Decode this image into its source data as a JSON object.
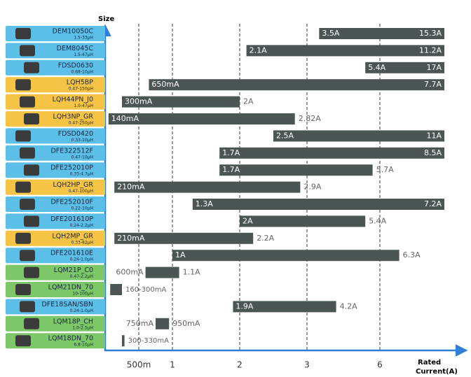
{
  "chart_data": {
    "type": "range-bar",
    "y_label": "Size",
    "x_label": "Rated Current(A)",
    "xlim": [
      0.1,
      7
    ],
    "xticks": [
      {
        "value": 0.5,
        "label": "500m"
      },
      1,
      2,
      3,
      6
    ],
    "grid": true,
    "bar_color": "#4b5654",
    "rows": [
      {
        "name": "DEM10050C",
        "inductance": "1.5-33µH",
        "color": "#5bbfe8",
        "values": [
          3.5,
          15.3
        ],
        "value_labels": [
          "3.5A",
          "15.3A"
        ]
      },
      {
        "name": "DEM8045C",
        "inductance": "1.5-47µH",
        "color": "#5bbfe8",
        "values": [
          2.1,
          11.2
        ],
        "value_labels": [
          "2.1A",
          "11.2A"
        ]
      },
      {
        "name": "FDSD0630",
        "inductance": "0.68-10µH",
        "color": "#5bbfe8",
        "values": [
          5.4,
          17
        ],
        "value_labels": [
          "5.4A",
          "17A"
        ]
      },
      {
        "name": "LQH5BP",
        "inductance": "0.47-150µH",
        "color": "#f6c445",
        "values": [
          0.65,
          7.7
        ],
        "value_labels": [
          "650mA",
          "7.7A"
        ]
      },
      {
        "name": "LQH44PN_J0",
        "inductance": "1.0-47µH",
        "color": "#f6c445",
        "values": [
          0.3,
          2
        ],
        "value_labels": [
          "300mA",
          "2A"
        ]
      },
      {
        "name": "LQH3NP_GR",
        "inductance": "0.47-250µH",
        "color": "#f6c445",
        "values": [
          0.14,
          2.82
        ],
        "value_labels": [
          "140mA",
          "2.82A"
        ]
      },
      {
        "name": "FDSD0420",
        "inductance": "0.33-10µH",
        "color": "#5bbfe8",
        "values": [
          2.5,
          11
        ],
        "value_labels": [
          "2.5A",
          "11A"
        ]
      },
      {
        "name": "DFE322512F",
        "inductance": "0.47-10µH",
        "color": "#5bbfe8",
        "values": [
          1.7,
          8.5
        ],
        "value_labels": [
          "1.7A",
          "8.5A"
        ]
      },
      {
        "name": "DFE252010P",
        "inductance": "0.33-4.7µH",
        "color": "#5bbfe8",
        "values": [
          1.7,
          5.7
        ],
        "value_labels": [
          "1.7A",
          "5.7A"
        ]
      },
      {
        "name": "LQH2HP_GR",
        "inductance": "0.47-100µH",
        "color": "#f6c445",
        "values": [
          0.21,
          2.9
        ],
        "value_labels": [
          "210mA",
          "2.9A"
        ]
      },
      {
        "name": "DFE252010F",
        "inductance": "0.22-10µH",
        "color": "#5bbfe8",
        "values": [
          1.3,
          7.2
        ],
        "value_labels": [
          "1.3A",
          "7.2A"
        ]
      },
      {
        "name": "DFE201610P",
        "inductance": "0.24-2.2µH",
        "color": "#5bbfe8",
        "values": [
          2,
          5.4
        ],
        "value_labels": [
          "2A",
          "5.4A"
        ]
      },
      {
        "name": "LQH2MP_GR",
        "inductance": "0.33-82µH",
        "color": "#f6c445",
        "values": [
          0.21,
          2.2
        ],
        "value_labels": [
          "210mA",
          "2.2A"
        ]
      },
      {
        "name": "DFE201610E",
        "inductance": "0.24-1.0µH",
        "color": "#5bbfe8",
        "values": [
          1,
          6.3
        ],
        "value_labels": [
          "1A",
          "6.3A"
        ]
      },
      {
        "name": "LQM21P_C0",
        "inductance": "0.47-2.2µH",
        "color": "#7cc868",
        "values": [
          0.6,
          1.1
        ],
        "value_labels": [
          "600mA",
          "1.1A"
        ]
      },
      {
        "name": "LQM21DN_70",
        "inductance": "10-100µH",
        "color": "#7cc868",
        "values": [
          0.16,
          0.3
        ],
        "range_label": "160-300mA"
      },
      {
        "name": "DFE18SAN/SBN",
        "inductance": "0.24-1.0µH",
        "color": "#5bbfe8",
        "values": [
          1.9,
          4.2
        ],
        "value_labels": [
          "1.9A",
          "4.2A"
        ]
      },
      {
        "name": "LQM18P_CH",
        "inductance": "1.0-2.5µH",
        "color": "#7cc868",
        "values": [
          0.75,
          0.95
        ],
        "value_labels": [
          "750mA",
          "950mA"
        ]
      },
      {
        "name": "LQM18DN_70",
        "inductance": "6.8-10µH",
        "color": "#7cc868",
        "values": [
          0.3,
          0.33
        ],
        "range_label": "300-330mA"
      }
    ]
  }
}
